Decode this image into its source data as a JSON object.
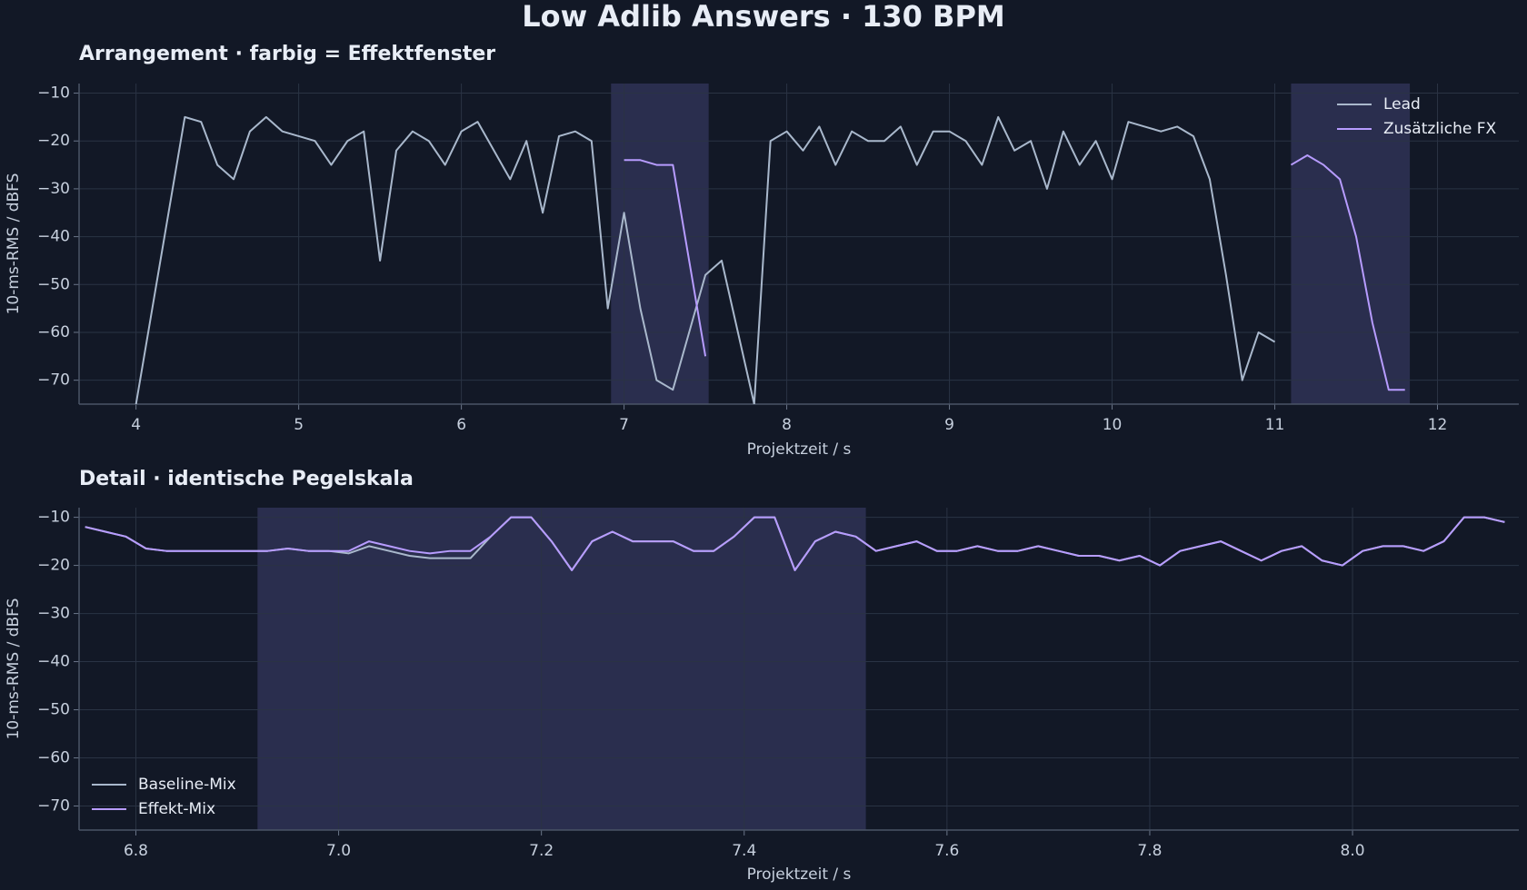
{
  "title": "Low Adlib Answers · 130 BPM",
  "chart_data": [
    {
      "type": "line",
      "title": "Arrangement · farbig = Effektfenster",
      "x_label": "Projektzeit / s",
      "y_label": "10-ms-RMS / dBFS",
      "xlim": [
        3.65,
        12.5
      ],
      "ylim": [
        -75,
        -8
      ],
      "xticks": [
        4,
        5,
        6,
        7,
        8,
        9,
        10,
        11,
        12
      ],
      "yticks": [
        {
          "value": -70,
          "label": "−70"
        },
        {
          "value": -60,
          "label": "−60"
        },
        {
          "value": -50,
          "label": "−50"
        },
        {
          "value": -40,
          "label": "−40"
        },
        {
          "value": -30,
          "label": "−30"
        },
        {
          "value": -20,
          "label": "−20"
        },
        {
          "value": -10,
          "label": "−10"
        }
      ],
      "grid": true,
      "legend": "upper right",
      "effect_windows": [
        [
          6.92,
          7.52
        ],
        [
          11.1,
          11.83
        ]
      ],
      "window_color": "#5a5a9a",
      "x": [
        4.0,
        4.1,
        4.2,
        4.3,
        4.4,
        4.5,
        4.6,
        4.7,
        4.8,
        4.9,
        5.0,
        5.1,
        5.2,
        5.3,
        5.4,
        5.5,
        5.6,
        5.7,
        5.8,
        5.9,
        6.0,
        6.1,
        6.2,
        6.3,
        6.4,
        6.5,
        6.6,
        6.7,
        6.8,
        6.9,
        7.0,
        7.1,
        7.2,
        7.3,
        7.4,
        7.5,
        7.6,
        7.7,
        7.8,
        7.9,
        8.0,
        8.1,
        8.2,
        8.3,
        8.4,
        8.5,
        8.6,
        8.7,
        8.8,
        8.9,
        9.0,
        9.1,
        9.2,
        9.3,
        9.4,
        9.5,
        9.6,
        9.7,
        9.8,
        9.9,
        10.0,
        10.1,
        10.2,
        10.3,
        10.4,
        10.5,
        10.6,
        10.7,
        10.8,
        10.9,
        11.0,
        11.1,
        11.2,
        11.3,
        11.4,
        11.5,
        11.6,
        11.7,
        11.8,
        11.9,
        12.0,
        12.1,
        12.2,
        12.3,
        12.4
      ],
      "series": [
        {
          "name": "Lead",
          "color": "#a9b8cc",
          "values": [
            -75,
            -55,
            -35,
            -15,
            -16,
            -25,
            -28,
            -18,
            -15,
            -18,
            -19,
            -20,
            -25,
            -20,
            -18,
            -45,
            -22,
            -18,
            -20,
            -25,
            -18,
            -16,
            -22,
            -28,
            -20,
            -35,
            -19,
            -18,
            -20,
            -55,
            -35,
            -55,
            -70,
            -72,
            -60,
            -48,
            -45,
            -60,
            -75,
            -20,
            -18,
            -22,
            -17,
            -25,
            -18,
            -20,
            -20,
            -17,
            -25,
            -18,
            -18,
            -20,
            -25,
            -15,
            -22,
            -20,
            -30,
            -18,
            -25,
            -20,
            -28,
            -16,
            -17,
            -18,
            -17,
            -19,
            -28,
            -48,
            -70,
            -60,
            -62,
            null,
            null,
            null,
            null,
            null,
            null,
            null,
            null,
            null,
            null,
            null,
            null,
            null,
            null
          ]
        },
        {
          "name": "Zusätzliche FX",
          "color": "#b79cff",
          "values": [
            null,
            null,
            null,
            null,
            null,
            null,
            null,
            null,
            null,
            null,
            null,
            null,
            null,
            null,
            null,
            null,
            null,
            null,
            null,
            null,
            null,
            null,
            null,
            null,
            null,
            null,
            null,
            null,
            null,
            null,
            -24,
            -24,
            -25,
            -25,
            -45,
            -65,
            null,
            null,
            null,
            null,
            null,
            null,
            null,
            null,
            null,
            null,
            null,
            null,
            null,
            null,
            null,
            null,
            null,
            null,
            null,
            null,
            null,
            null,
            null,
            null,
            null,
            null,
            null,
            null,
            null,
            null,
            null,
            null,
            null,
            null,
            null,
            -25,
            -23,
            -25,
            -28,
            -40,
            -58,
            -72,
            -72,
            null,
            null,
            null,
            null,
            null,
            null
          ]
        }
      ]
    },
    {
      "type": "line",
      "title": "Detail · identische Pegelskala",
      "x_label": "Projektzeit / s",
      "y_label": "10-ms-RMS / dBFS",
      "xlim": [
        6.744,
        8.164
      ],
      "ylim": [
        -75,
        -8
      ],
      "xticks": [
        6.8,
        {
          "value": 7,
          "label": "7.0"
        },
        7.2,
        7.4,
        7.6,
        7.8,
        {
          "value": 8,
          "label": "8.0"
        }
      ],
      "yticks": [
        {
          "value": -70,
          "label": "−70"
        },
        {
          "value": -60,
          "label": "−60"
        },
        {
          "value": -50,
          "label": "−50"
        },
        {
          "value": -40,
          "label": "−40"
        },
        {
          "value": -30,
          "label": "−30"
        },
        {
          "value": -20,
          "label": "−20"
        },
        {
          "value": -10,
          "label": "−10"
        }
      ],
      "grid": true,
      "legend": "lower left",
      "effect_windows": [
        [
          6.92,
          7.52
        ]
      ],
      "window_color": "#5a5a9a",
      "x": [
        6.75,
        6.77,
        6.79,
        6.81,
        6.83,
        6.85,
        6.87,
        6.89,
        6.91,
        6.93,
        6.95,
        6.97,
        6.99,
        7.01,
        7.03,
        7.05,
        7.07,
        7.09,
        7.11,
        7.13,
        7.15,
        7.17,
        7.19,
        7.21,
        7.23,
        7.25,
        7.27,
        7.29,
        7.31,
        7.33,
        7.35,
        7.37,
        7.39,
        7.41,
        7.43,
        7.45,
        7.47,
        7.49,
        7.51,
        7.53,
        7.55,
        7.57,
        7.59,
        7.61,
        7.63,
        7.65,
        7.67,
        7.69,
        7.71,
        7.73,
        7.75,
        7.77,
        7.79,
        7.81,
        7.83,
        7.85,
        7.87,
        7.89,
        7.91,
        7.93,
        7.95,
        7.97,
        7.99,
        8.01,
        8.03,
        8.05,
        8.07,
        8.09,
        8.11,
        8.13,
        8.15
      ],
      "series": [
        {
          "name": "Baseline-Mix",
          "color": "#a9b8cc",
          "values": [
            -12,
            -13,
            -14,
            -16.5,
            -17,
            -17,
            -17,
            -17,
            -17,
            -17,
            -16.5,
            -17,
            -17,
            -17.5,
            -16,
            -17,
            -18,
            -18.5,
            -18.5,
            -18.5,
            -14,
            -10,
            -10,
            -15,
            -21,
            -15,
            -13,
            -15,
            -15,
            -15,
            -17,
            -17,
            -14,
            -10,
            -10,
            -21,
            -15,
            -13,
            -14,
            -17,
            -16,
            -15,
            -17,
            -17,
            -16,
            -17,
            -17,
            -16,
            -17,
            -18,
            -18,
            -19,
            -18,
            -20,
            -17,
            -16,
            -15,
            -17,
            -19,
            -17,
            -16,
            -19,
            -20,
            -17,
            -16,
            -16,
            -17,
            -15,
            -10,
            -10,
            -11
          ]
        },
        {
          "name": "Effekt-Mix",
          "color": "#b79cff",
          "values": [
            -12,
            -13,
            -14,
            -16.5,
            -17,
            -17,
            -17,
            -17,
            -17,
            -17,
            -16.5,
            -17,
            -17,
            -17,
            -15,
            -16,
            -17,
            -17.5,
            -17,
            -17,
            -14,
            -10,
            -10,
            -15,
            -21,
            -15,
            -13,
            -15,
            -15,
            -15,
            -17,
            -17,
            -14,
            -10,
            -10,
            -21,
            -15,
            -13,
            -14,
            -17,
            -16,
            -15,
            -17,
            -17,
            -16,
            -17,
            -17,
            -16,
            -17,
            -18,
            -18,
            -19,
            -18,
            -20,
            -17,
            -16,
            -15,
            -17,
            -19,
            -17,
            -16,
            -19,
            -20,
            -17,
            -16,
            -16,
            -17,
            -15,
            -10,
            -10,
            -11
          ]
        }
      ]
    }
  ]
}
